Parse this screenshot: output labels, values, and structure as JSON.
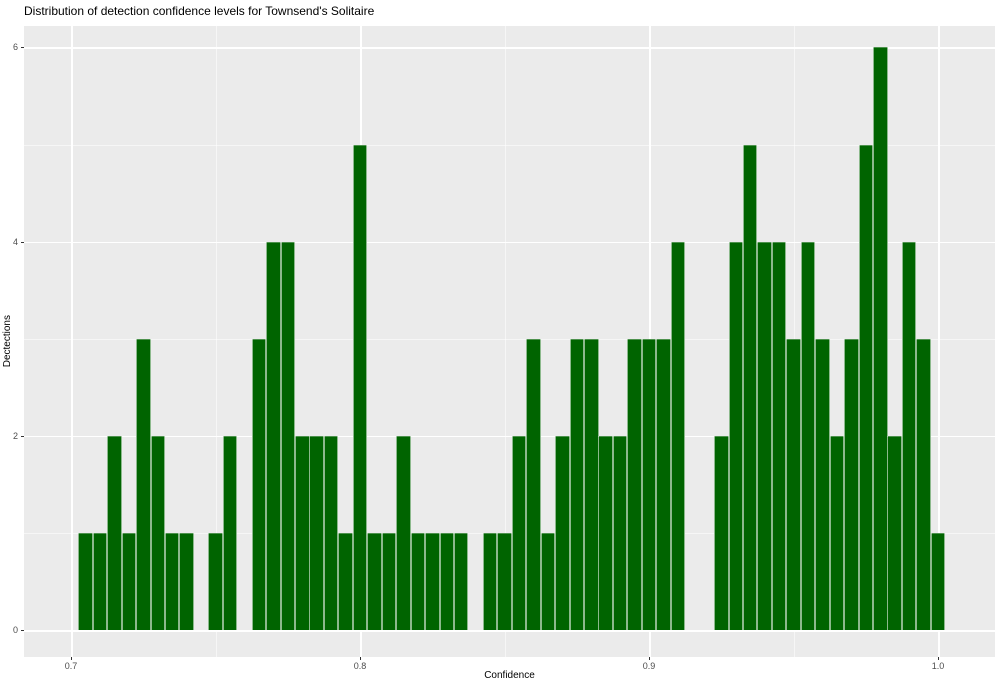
{
  "title": "Distribution of detection confidence levels for Townsend's Solitaire",
  "chart_data": {
    "type": "bar",
    "subtype": "histogram",
    "title": "Distribution of detection confidence levels for Townsend's Solitaire",
    "xlabel": "Confidence",
    "ylabel": "Dectections",
    "bin_start": 0.7025,
    "bin_width": 0.005,
    "counts": [
      1,
      1,
      2,
      1,
      3,
      2,
      1,
      1,
      0,
      1,
      2,
      0,
      3,
      4,
      4,
      2,
      2,
      2,
      1,
      5,
      1,
      1,
      2,
      1,
      1,
      1,
      1,
      0,
      1,
      1,
      2,
      3,
      1,
      2,
      3,
      3,
      2,
      2,
      3,
      3,
      3,
      4,
      0,
      0,
      2,
      4,
      5,
      4,
      4,
      3,
      4,
      3,
      2,
      3,
      5,
      6,
      2,
      4,
      3,
      1
    ],
    "x_ticks": [
      0.7,
      0.8,
      0.9,
      1.0
    ],
    "x_tick_labels": [
      "0.7",
      "0.8",
      "0.9",
      "1.0"
    ],
    "x_minor_ticks": [
      0.75,
      0.85,
      0.95
    ],
    "y_ticks": [
      0,
      2,
      4,
      6
    ],
    "y_tick_labels": [
      "0",
      "2",
      "4",
      "6"
    ],
    "y_minor_ticks": [
      1,
      3,
      5
    ],
    "xlim": [
      0.684,
      1.02
    ],
    "ylim": [
      0,
      6.25
    ],
    "grid": true,
    "legend": "none",
    "colors": {
      "bar_fill": "#006400",
      "panel_background": "#EBEBEB",
      "gridline": "#FFFFFF",
      "tick_label": "#4D4D4D",
      "tick_mark": "#333333",
      "title_text": "#000000",
      "figure_background": "#FFFFFF"
    }
  }
}
